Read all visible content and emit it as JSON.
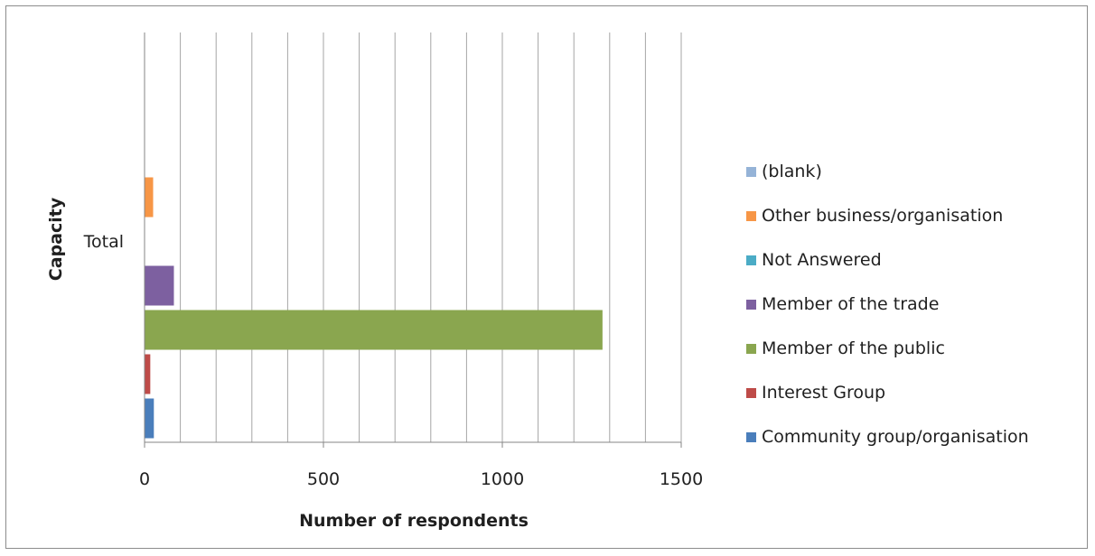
{
  "chart_data": {
    "type": "bar",
    "orientation": "horizontal",
    "title": "",
    "xlabel": "Number of respondents",
    "ylabel": "Capacity",
    "categories": [
      "Total"
    ],
    "xlim": [
      0,
      1500
    ],
    "x_ticks": [
      0,
      500,
      1000,
      1500
    ],
    "gridlines": "vertical, every 100",
    "legend_position": "right",
    "series": [
      {
        "name": "Community group/organisation",
        "color": "#4a7ebb",
        "values": [
          26
        ]
      },
      {
        "name": "Interest Group",
        "color": "#be4b48",
        "values": [
          16
        ]
      },
      {
        "name": "Member of the public",
        "color": "#8aa64f",
        "values": [
          1280
        ]
      },
      {
        "name": "Member of the trade",
        "color": "#7d60a0",
        "values": [
          82
        ]
      },
      {
        "name": "Not Answered",
        "color": "#4bacc6",
        "values": [
          0
        ]
      },
      {
        "name": "Other business/organisation",
        "color": "#f79646",
        "values": [
          24
        ]
      },
      {
        "name": "(blank)",
        "color": "#95b3d7",
        "values": [
          0
        ]
      }
    ]
  },
  "axis": {
    "x_title": "Number of respondents",
    "y_title": "Capacity",
    "category_label": "Total",
    "tick_labels": [
      "0",
      "500",
      "1000",
      "1500"
    ]
  },
  "legend": {
    "items": [
      {
        "label": "(blank)",
        "color": "#95b3d7"
      },
      {
        "label": "Other business/organisation",
        "color": "#f79646"
      },
      {
        "label": "Not Answered",
        "color": "#4bacc6"
      },
      {
        "label": "Member of the trade",
        "color": "#7d60a0"
      },
      {
        "label": "Member of the public",
        "color": "#8aa64f"
      },
      {
        "label": "Interest Group",
        "color": "#be4b48"
      },
      {
        "label": "Community group/organisation",
        "color": "#4a7ebb"
      }
    ]
  }
}
